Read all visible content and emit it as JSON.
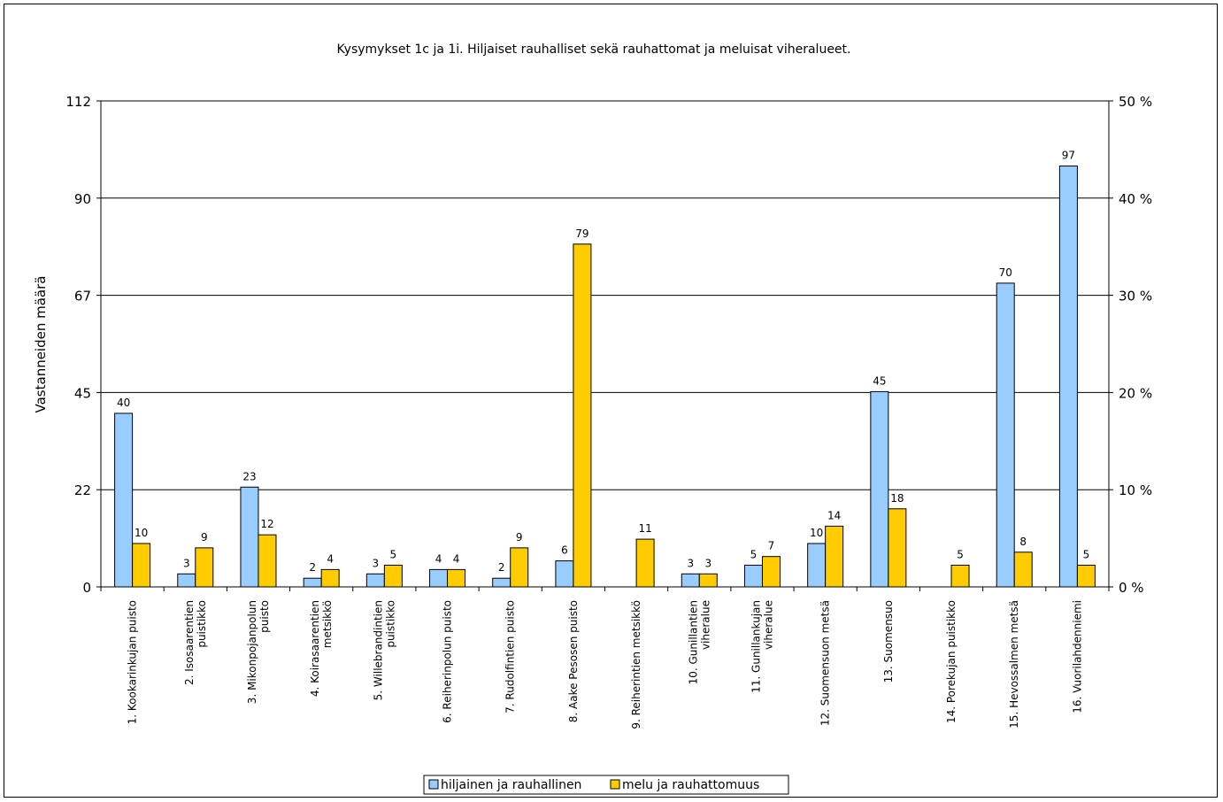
{
  "chart_data": {
    "type": "bar",
    "title": "Kysymykset 1c ja 1i. Hiljaiset rauhalliset sekä rauhattomat ja meluisat viheralueet.",
    "ylabel": "Vastanneiden määrä",
    "ylim": [
      0,
      112
    ],
    "y_ticks": [
      "0",
      "22",
      "45",
      "67",
      "90",
      "112"
    ],
    "y_tick_values": [
      0,
      22.4,
      44.8,
      67.2,
      89.6,
      112
    ],
    "y2_ticks": [
      "0 %",
      "10 %",
      "20 %",
      "30 %",
      "40 %",
      "50 %"
    ],
    "grid": true,
    "legend_position": "bottom",
    "categories": [
      "1. Kookarinkujan puisto",
      "2. Isosaarentien puistikko",
      "3. Mikonpojanpolun puisto",
      "4. Koirasaarentien metsikkö",
      "5. Willebrandintien puistikko",
      "6. Reiherinpolun puisto",
      "7. Rudolfintien puisto",
      "8. Aake Pesosen puisto",
      "9. Reiherintien metsikkö",
      "10. Gunillantien viheralue",
      "11. Gunillankujan viheralue",
      "12. Suomensuon metsä",
      "13. Suomensuo",
      "14. Porekujan puistikko",
      "15. Hevossalmen metsä",
      "16. Vuorilahdenniemi"
    ],
    "series": [
      {
        "name": "hiljainen ja rauhallinen",
        "color": "#99ccff",
        "values": [
          40,
          3,
          23,
          2,
          3,
          4,
          2,
          6,
          null,
          3,
          5,
          10,
          45,
          null,
          70,
          97
        ],
        "labels": [
          "40",
          "3",
          "23",
          "2",
          "3",
          "4",
          "2",
          "6",
          "",
          "3",
          "5",
          "10",
          "45",
          "",
          "70",
          "97"
        ]
      },
      {
        "name": "melu ja rauhattomuus",
        "color": "#ffcc00",
        "values": [
          10,
          9,
          12,
          4,
          5,
          4,
          9,
          79,
          11,
          3,
          7,
          14,
          18,
          5,
          8,
          5
        ],
        "labels": [
          "10",
          "9",
          "12",
          "4",
          "5",
          "4",
          "9",
          "79",
          "11",
          "3",
          "7",
          "14",
          "18",
          "5",
          "8",
          "5"
        ]
      }
    ]
  }
}
